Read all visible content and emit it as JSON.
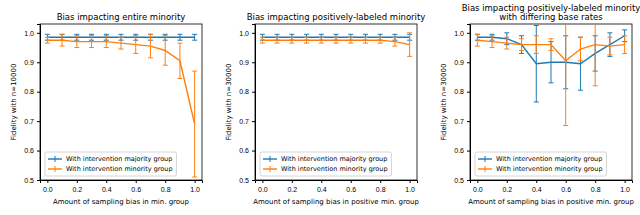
{
  "chart_data": [
    {
      "type": "line",
      "title": "Bias impacting entire minority",
      "x_label": "Amount of sampling bias in min. group",
      "y_label": "Fidelity with n=10000",
      "x": [
        0.0,
        0.1,
        0.2,
        0.3,
        0.4,
        0.5,
        0.6,
        0.7,
        0.8,
        0.9,
        1.0
      ],
      "xlim": [
        -0.05,
        1.05
      ],
      "xticks": [
        {
          "value": 0,
          "label": "0.0"
        },
        0.2,
        0.4,
        0.6,
        0.8,
        {
          "value": 1,
          "label": "1.0"
        }
      ],
      "ylim": [
        0.5,
        1.03
      ],
      "yticks": [
        0.5,
        0.6,
        0.7,
        0.8,
        0.9,
        {
          "value": 1,
          "label": "1.0"
        }
      ],
      "legend": "lower left",
      "series": [
        {
          "name": "With intervention majority group",
          "color": "#1f77b4",
          "values": [
            0.985,
            0.985,
            0.985,
            0.985,
            0.985,
            0.985,
            0.985,
            0.985,
            0.985,
            0.985,
            0.985
          ],
          "errors": [
            0.01,
            0.01,
            0.01,
            0.01,
            0.01,
            0.01,
            0.01,
            0.01,
            0.01,
            0.01,
            0.01
          ]
        },
        {
          "name": "With intervention minority group",
          "color": "#ff7f0e",
          "values": [
            0.975,
            0.975,
            0.97,
            0.97,
            0.97,
            0.965,
            0.96,
            0.955,
            0.94,
            0.905,
            0.69
          ],
          "errors": [
            0.01,
            0.02,
            0.02,
            0.02,
            0.02,
            0.02,
            0.03,
            0.04,
            0.05,
            0.06,
            0.18
          ]
        }
      ]
    },
    {
      "type": "line",
      "title": "Bias impacting positively-labeled minority",
      "x_label": "Amount of sampling bias in positive min. group",
      "y_label": "Fidelity with n=30000",
      "x": [
        0.0,
        0.1,
        0.2,
        0.3,
        0.4,
        0.5,
        0.6,
        0.7,
        0.8,
        0.9,
        1.0
      ],
      "xlim": [
        -0.05,
        1.05
      ],
      "xticks": [
        {
          "value": 0,
          "label": "0.0"
        },
        0.2,
        0.4,
        0.6,
        0.8,
        {
          "value": 1,
          "label": "1.0"
        }
      ],
      "ylim": [
        0.5,
        1.03
      ],
      "yticks": [
        0.5,
        0.6,
        0.7,
        0.8,
        0.9,
        {
          "value": 1,
          "label": "1.0"
        }
      ],
      "legend": "lower left",
      "series": [
        {
          "name": "With intervention majority group",
          "color": "#1f77b4",
          "values": [
            0.985,
            0.985,
            0.985,
            0.985,
            0.985,
            0.985,
            0.985,
            0.985,
            0.985,
            0.985,
            0.985
          ],
          "errors": [
            0.01,
            0.01,
            0.01,
            0.01,
            0.01,
            0.01,
            0.01,
            0.01,
            0.01,
            0.01,
            0.01
          ]
        },
        {
          "name": "With intervention minority group",
          "color": "#ff7f0e",
          "values": [
            0.975,
            0.975,
            0.975,
            0.975,
            0.975,
            0.975,
            0.975,
            0.975,
            0.975,
            0.97,
            0.96
          ],
          "errors": [
            0.01,
            0.01,
            0.01,
            0.01,
            0.01,
            0.01,
            0.01,
            0.01,
            0.01,
            0.015,
            0.04
          ]
        }
      ]
    },
    {
      "type": "line",
      "title": "Bias impacting positively-labeled minority\nwith differing base rates",
      "x_label": "Amount of sampling bias in positive min. group",
      "y_label": "Fidelity with n=30000",
      "x": [
        0.0,
        0.1,
        0.2,
        0.3,
        0.4,
        0.5,
        0.6,
        0.7,
        0.8,
        0.9,
        1.0
      ],
      "xlim": [
        -0.05,
        1.05
      ],
      "xticks": [
        {
          "value": 0,
          "label": "0.0"
        },
        0.2,
        0.4,
        0.6,
        0.8,
        {
          "value": 1,
          "label": "1.0"
        }
      ],
      "ylim": [
        0.5,
        1.03
      ],
      "yticks": [
        0.5,
        0.6,
        0.7,
        0.8,
        0.9,
        {
          "value": 1,
          "label": "1.0"
        }
      ],
      "legend": "lower left",
      "series": [
        {
          "name": "With intervention majority group",
          "color": "#1f77b4",
          "values": [
            0.985,
            0.985,
            0.98,
            0.96,
            0.895,
            0.9,
            0.9,
            0.895,
            0.93,
            0.96,
            0.99
          ],
          "errors": [
            0.01,
            0.01,
            0.02,
            0.03,
            0.13,
            0.07,
            0.09,
            0.09,
            0.06,
            0.04,
            0.02
          ]
        },
        {
          "name": "With intervention minority group",
          "color": "#ff7f0e",
          "values": [
            0.975,
            0.97,
            0.965,
            0.96,
            0.96,
            0.96,
            0.905,
            0.945,
            0.96,
            0.955,
            0.96
          ],
          "errors": [
            0.02,
            0.02,
            0.02,
            0.02,
            0.03,
            0.02,
            0.22,
            0.04,
            0.14,
            0.03,
            0.03
          ]
        }
      ]
    }
  ]
}
